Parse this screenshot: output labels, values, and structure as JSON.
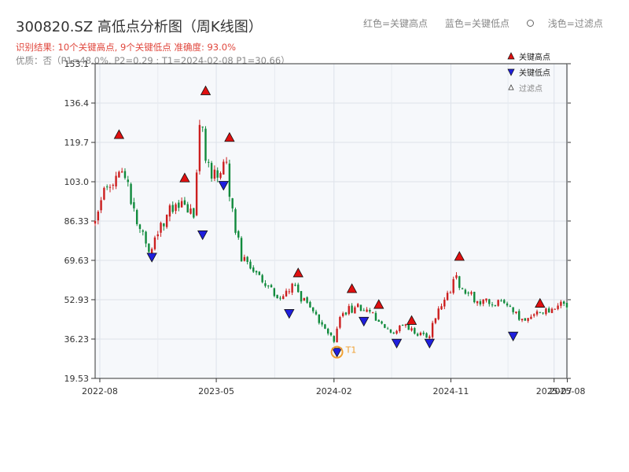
{
  "title": "300820.SZ 高低点分析图（周K线图）",
  "top_legend": {
    "red": "红色=关键高点",
    "blue": "蓝色=关键低点",
    "light": "浅色=过滤点"
  },
  "subtitle_result": "识别结果: 10个关键高点, 9个关键低点  准确度: 93.0%",
  "subtitle_quality": "优质：否（P1=48.0%, P2=0.29 ; T1=2024-02-08 P1=30.66）",
  "colors": {
    "up": "#cc1f1f",
    "down": "#108a3c",
    "high_marker": "#e01010",
    "low_marker": "#1f1fdd",
    "t1_marker": "#f0a030"
  },
  "chart_data": {
    "type": "candlestick",
    "x_axis": {
      "min": "2022-07-21",
      "max": "2025-07-31",
      "ticks": [
        "2022-08",
        "2023-05",
        "2024-02",
        "2024-11",
        "2025-07",
        "2025-08"
      ]
    },
    "y_axis": {
      "min": 19.53,
      "max": 153.1,
      "ticks": [
        "19.53",
        "36.23",
        "52.93",
        "69.63",
        "86.33",
        "103.0",
        "119.7",
        "136.4",
        "153.1"
      ]
    },
    "grid": true,
    "legend": {
      "position": "top-right",
      "items": [
        "关键高点",
        "关键低点",
        "过滤点"
      ]
    },
    "trend": [
      [
        "2022-07-21",
        85
      ],
      [
        "2022-08-11",
        100
      ],
      [
        "2022-09-15",
        108
      ],
      [
        "2022-10-06",
        102
      ],
      [
        "2022-10-27",
        85
      ],
      [
        "2022-11-24",
        73
      ],
      [
        "2022-12-15",
        82
      ],
      [
        "2023-01-19",
        93
      ],
      [
        "2023-02-16",
        95
      ],
      [
        "2023-03-09",
        86
      ],
      [
        "2023-03-23",
        128
      ],
      [
        "2023-04-13",
        110
      ],
      [
        "2023-04-27",
        106
      ],
      [
        "2023-05-25",
        110
      ],
      [
        "2023-06-08",
        90
      ],
      [
        "2023-06-29",
        70
      ],
      [
        "2023-08-10",
        62
      ],
      [
        "2023-09-28",
        52
      ],
      [
        "2023-10-26",
        60
      ],
      [
        "2023-11-23",
        52
      ],
      [
        "2024-01-11",
        40
      ],
      [
        "2024-02-01",
        36
      ],
      [
        "2024-02-22",
        48
      ],
      [
        "2024-04-04",
        50
      ],
      [
        "2024-05-09",
        45
      ],
      [
        "2024-06-13",
        38
      ],
      [
        "2024-07-11",
        42
      ],
      [
        "2024-08-15",
        38
      ],
      [
        "2024-09-12",
        38
      ],
      [
        "2024-10-03",
        50
      ],
      [
        "2024-11-14",
        62
      ],
      [
        "2024-11-28",
        58
      ],
      [
        "2025-01-02",
        52
      ],
      [
        "2025-02-20",
        52
      ],
      [
        "2025-03-27",
        48
      ],
      [
        "2025-04-24",
        44
      ],
      [
        "2025-06-05",
        48
      ],
      [
        "2025-07-31",
        51
      ]
    ],
    "key_highs": [
      {
        "date": "2022-09-15",
        "price": 123.0
      },
      {
        "date": "2023-02-16",
        "price": 104.6
      },
      {
        "date": "2023-04-06",
        "price": 141.6
      },
      {
        "date": "2023-06-01",
        "price": 121.8
      },
      {
        "date": "2023-11-09",
        "price": 64.3
      },
      {
        "date": "2024-03-14",
        "price": 57.6
      },
      {
        "date": "2024-05-16",
        "price": 50.9
      },
      {
        "date": "2024-08-01",
        "price": 44.1
      },
      {
        "date": "2024-11-21",
        "price": 71.3
      },
      {
        "date": "2025-05-29",
        "price": 51.4
      }
    ],
    "key_lows": [
      {
        "date": "2022-12-01",
        "price": 71.0
      },
      {
        "date": "2023-03-30",
        "price": 80.5
      },
      {
        "date": "2023-05-18",
        "price": 101.5
      },
      {
        "date": "2023-10-19",
        "price": 47.1
      },
      {
        "date": "2024-02-08",
        "price": 30.66
      },
      {
        "date": "2024-04-11",
        "price": 43.8
      },
      {
        "date": "2024-06-27",
        "price": 34.5
      },
      {
        "date": "2024-09-12",
        "price": 34.5
      },
      {
        "date": "2025-03-27",
        "price": 37.5
      }
    ],
    "t1": {
      "date": "2024-02-08",
      "price": 30.66,
      "label": "T1"
    }
  }
}
